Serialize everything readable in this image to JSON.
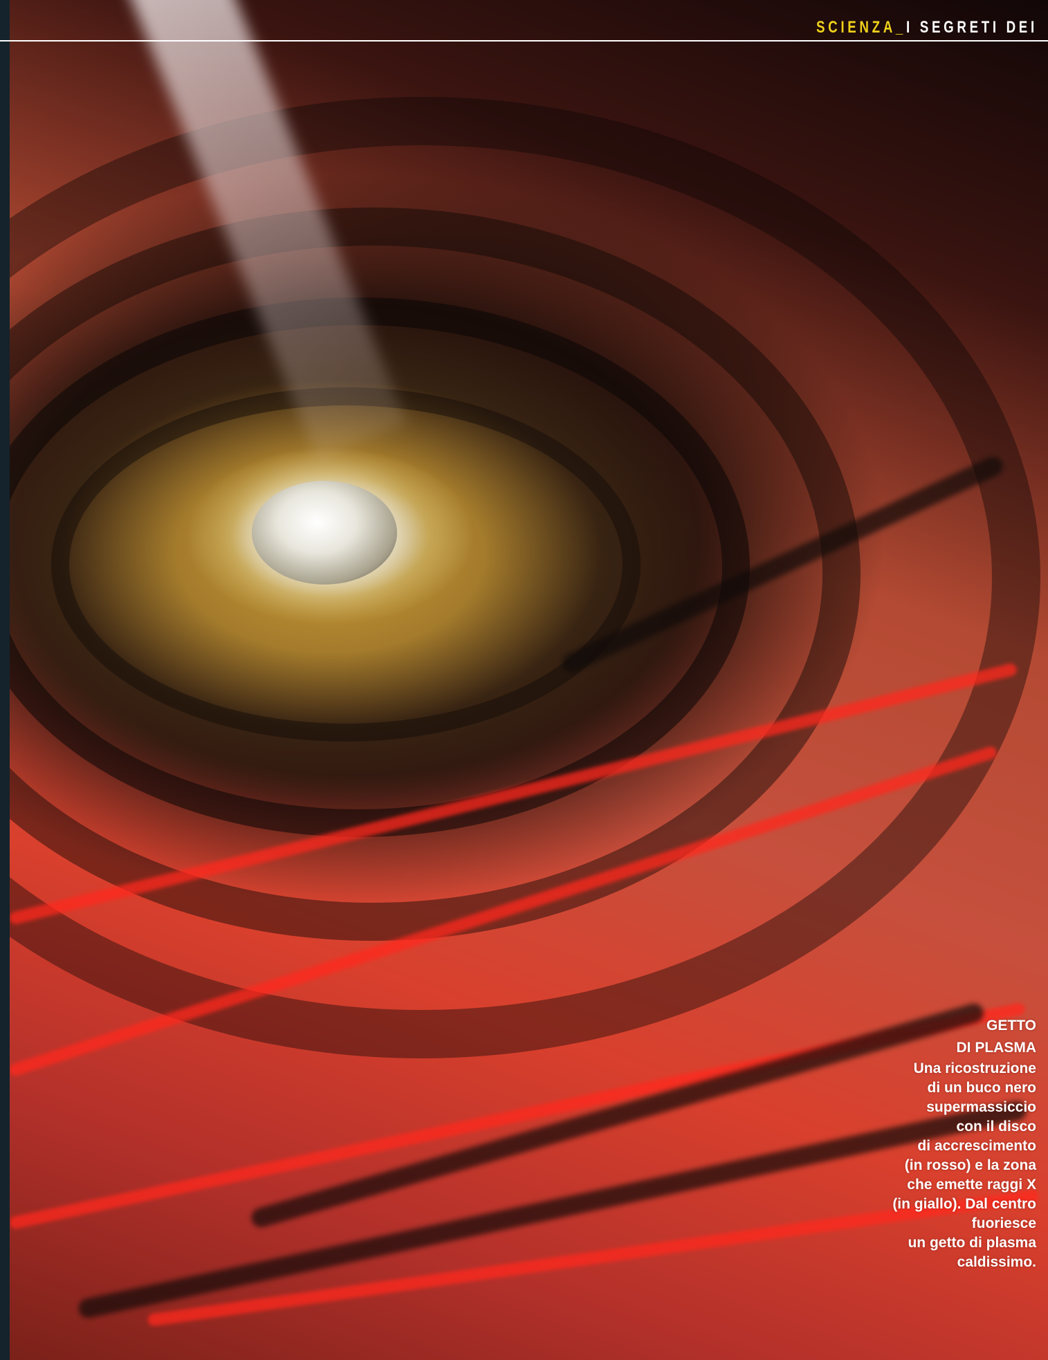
{
  "header": {
    "section": "SCIENZA",
    "separator": "_",
    "title": "I SEGRETI DEI"
  },
  "caption": {
    "title_lines": [
      "GETTO",
      "DI PLASMA"
    ],
    "body_lines": [
      "Una ricostruzione",
      "di un buco nero",
      "supermassiccio",
      "con il disco",
      "di accrescimento",
      "(in rosso) e la zona",
      "che emette raggi X",
      "(in giallo). Dal  centro",
      "fuoriesce",
      "un getto di plasma",
      "caldissimo."
    ]
  },
  "colors": {
    "section_accent": "#f0d21a",
    "caption_text": "#ffffff",
    "accretion_disc": "#c6503d",
    "xray_zone": "#c99b37"
  }
}
